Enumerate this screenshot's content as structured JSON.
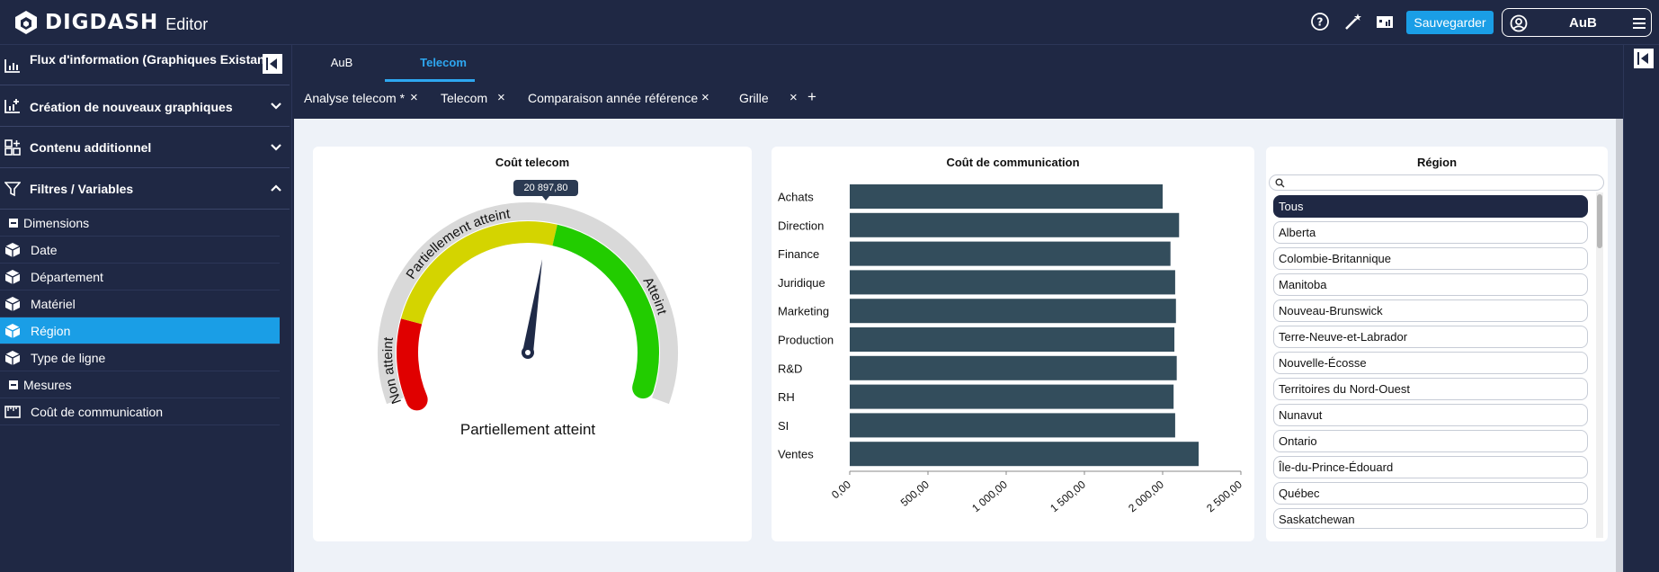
{
  "app": {
    "logo_text": "DIGDASH",
    "subtitle": "Editor"
  },
  "toolbar": {
    "save_label": "Sauvegarder",
    "user_name": "AuB"
  },
  "sidebar": {
    "sections": [
      {
        "label": "Flux d'information (Graphiques Existants)"
      },
      {
        "label": "Création de nouveaux graphiques"
      },
      {
        "label": "Contenu additionnel"
      },
      {
        "label": "Filtres / Variables"
      }
    ],
    "items": [
      {
        "label": "Dimensions"
      },
      {
        "label": "Date"
      },
      {
        "label": "Département"
      },
      {
        "label": "Matériel"
      },
      {
        "label": "Région"
      },
      {
        "label": "Type de ligne"
      },
      {
        "label": "Mesures"
      },
      {
        "label": "Coût de communication"
      }
    ]
  },
  "tabs": {
    "main": [
      {
        "label": "AuB"
      },
      {
        "label": "Telecom"
      }
    ],
    "sub": [
      {
        "label": "Analyse telecom *"
      },
      {
        "label": "Telecom"
      },
      {
        "label": "Comparaison année référence"
      },
      {
        "label": "Grille"
      }
    ],
    "close_glyph": "×",
    "add_glyph": "+"
  },
  "gauge": {
    "title": "Coût telecom",
    "value_label": "20 897,80",
    "status_text": "Partiellement atteint",
    "band_labels": [
      "Non atteint",
      "Partiellement atteint",
      "Atteint"
    ],
    "value_fraction": 0.54,
    "colors": {
      "red": "#e00000",
      "yellow": "#d4d400",
      "green": "#22cc00",
      "track": "#d9d9d9",
      "needle": "#1f2a47"
    }
  },
  "chart_data": {
    "type": "bar",
    "title": "Coût de communication",
    "categories": [
      "Achats",
      "Direction",
      "Finance",
      "Juridique",
      "Marketing",
      "Production",
      "R&D",
      "RH",
      "SI",
      "Ventes"
    ],
    "values": [
      2000,
      2105,
      2050,
      2080,
      2085,
      2075,
      2090,
      2070,
      2080,
      2230
    ],
    "xlim": [
      0,
      2500
    ],
    "xticks": [
      "0,00",
      "500,00",
      "1 000,00",
      "1 500,00",
      "2 000,00",
      "2 500,00"
    ],
    "orientation": "horizontal",
    "bar_color": "#334d5c"
  },
  "region": {
    "title": "Région",
    "search_placeholder": "",
    "items": [
      {
        "label": "Tous",
        "selected": true
      },
      {
        "label": "Alberta"
      },
      {
        "label": "Colombie-Britannique"
      },
      {
        "label": "Manitoba"
      },
      {
        "label": "Nouveau-Brunswick"
      },
      {
        "label": "Terre-Neuve-et-Labrador"
      },
      {
        "label": "Nouvelle-Écosse"
      },
      {
        "label": "Territoires du Nord-Ouest"
      },
      {
        "label": "Nunavut"
      },
      {
        "label": "Ontario"
      },
      {
        "label": "Île-du-Prince-Édouard"
      },
      {
        "label": "Québec"
      },
      {
        "label": "Saskatchewan"
      }
    ]
  }
}
